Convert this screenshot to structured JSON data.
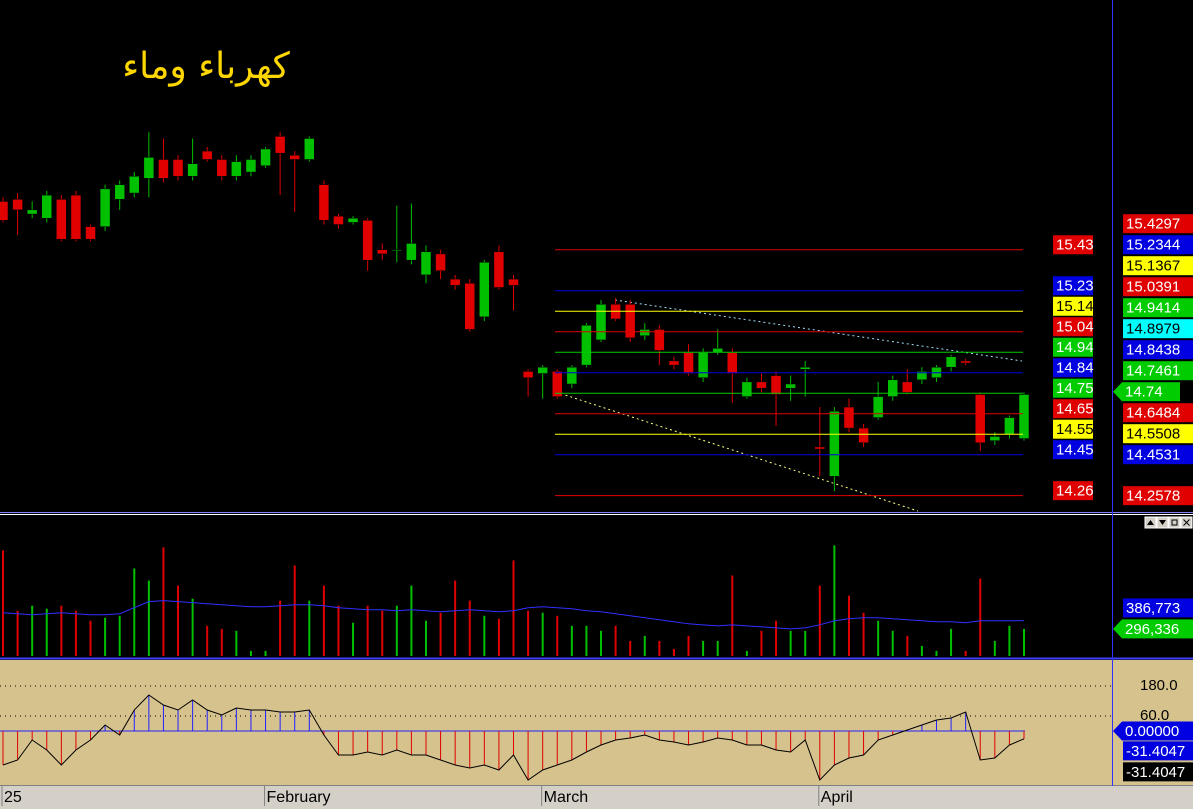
{
  "chart_data": [
    {
      "type": "candlestick",
      "title": "كهرباء وماء",
      "categories": [
        "25",
        null,
        null,
        null,
        null,
        null,
        null,
        null,
        null,
        null,
        null,
        null,
        null,
        null,
        null,
        null,
        null,
        null,
        "February",
        null,
        null,
        null,
        null,
        null,
        null,
        null,
        null,
        null,
        null,
        null,
        null,
        null,
        null,
        null,
        null,
        null,
        null,
        "March",
        null,
        null,
        null,
        null,
        null,
        null,
        null,
        null,
        null,
        null,
        null,
        null,
        null,
        null,
        null,
        null,
        null,
        null,
        "April",
        null,
        null,
        null,
        null,
        null,
        null,
        null,
        null,
        null,
        null,
        null,
        null,
        null,
        null
      ],
      "open": [
        15.66,
        15.67,
        15.6,
        15.58,
        15.67,
        15.69,
        15.54,
        15.54,
        15.67,
        15.7,
        15.77,
        15.86,
        15.86,
        15.78,
        15.9,
        15.86,
        15.78,
        15.8,
        15.83,
        15.97,
        15.88,
        15.86,
        15.74,
        15.59,
        15.56,
        15.57,
        15.43,
        15.43,
        15.38,
        15.31,
        15.41,
        15.29,
        15.27,
        15.11,
        15.42,
        15.29,
        14.85,
        14.84,
        14.85,
        14.79,
        14.88,
        15.0,
        15.17,
        15.17,
        15.02,
        15.05,
        14.9,
        14.94,
        14.82,
        14.94,
        14.94,
        14.73,
        14.8,
        14.83,
        14.77,
        14.86,
        14.49,
        14.35,
        14.68,
        14.58,
        14.63,
        14.73,
        14.8,
        14.81,
        14.82,
        14.87,
        14.9,
        14.74,
        14.52,
        14.55,
        14.53
      ],
      "high": [
        15.68,
        15.7,
        15.66,
        15.71,
        15.69,
        15.71,
        15.55,
        15.74,
        15.76,
        15.8,
        15.99,
        15.96,
        15.88,
        15.96,
        15.92,
        15.88,
        15.88,
        15.88,
        15.92,
        15.99,
        15.9,
        15.97,
        15.76,
        15.6,
        15.59,
        15.58,
        15.46,
        15.64,
        15.65,
        15.45,
        15.43,
        15.31,
        15.29,
        15.38,
        15.45,
        15.31,
        14.86,
        14.88,
        14.86,
        14.88,
        15.08,
        15.19,
        15.2,
        15.19,
        15.08,
        15.07,
        14.92,
        14.98,
        14.96,
        15.05,
        14.96,
        14.82,
        14.84,
        14.85,
        14.83,
        14.9,
        14.68,
        14.68,
        14.72,
        14.6,
        14.8,
        14.83,
        14.86,
        14.87,
        14.88,
        14.93,
        14.91,
        14.75,
        14.56,
        14.64,
        14.75
      ],
      "low": [
        15.56,
        15.5,
        15.58,
        15.56,
        15.47,
        15.47,
        15.47,
        15.52,
        15.62,
        15.68,
        15.68,
        15.75,
        15.76,
        15.76,
        15.85,
        15.76,
        15.76,
        15.78,
        15.82,
        15.69,
        15.61,
        15.85,
        15.55,
        15.53,
        15.55,
        15.33,
        15.38,
        15.37,
        15.36,
        15.27,
        15.29,
        15.24,
        15.04,
        15.09,
        15.24,
        15.14,
        14.73,
        14.72,
        14.72,
        14.77,
        14.87,
        14.99,
        15.09,
        14.99,
        15.0,
        14.88,
        14.86,
        14.83,
        14.8,
        14.93,
        14.7,
        14.72,
        14.75,
        14.59,
        14.71,
        14.73,
        14.35,
        14.28,
        14.56,
        14.49,
        14.62,
        14.71,
        14.74,
        14.79,
        14.8,
        14.85,
        14.88,
        14.47,
        14.5,
        14.53,
        14.52
      ],
      "close": [
        15.57,
        15.62,
        15.62,
        15.69,
        15.48,
        15.48,
        15.48,
        15.72,
        15.74,
        15.78,
        15.87,
        15.77,
        15.78,
        15.84,
        15.86,
        15.78,
        15.85,
        15.86,
        15.91,
        15.89,
        15.86,
        15.96,
        15.57,
        15.55,
        15.58,
        15.38,
        15.41,
        15.43,
        15.46,
        15.42,
        15.33,
        15.26,
        15.05,
        15.37,
        15.25,
        15.26,
        14.82,
        14.87,
        14.73,
        14.87,
        15.07,
        15.17,
        15.1,
        15.01,
        15.05,
        14.95,
        14.88,
        14.84,
        14.94,
        14.96,
        14.84,
        14.8,
        14.77,
        14.74,
        14.79,
        14.87,
        14.48,
        14.66,
        14.58,
        14.51,
        14.73,
        14.81,
        14.75,
        14.85,
        14.87,
        14.92,
        14.89,
        14.51,
        14.54,
        14.63,
        14.74
      ],
      "up_color": "#00c000",
      "down_color": "#e00000",
      "ylim": [
        14.18,
        16.62
      ],
      "levels": [
        {
          "value": 15.4297,
          "label": "15.43",
          "color": "#e00000"
        },
        {
          "value": 15.2344,
          "label": "15.23",
          "color": "#0000e0"
        },
        {
          "value": 15.1367,
          "label": "15.14",
          "color": "#ffff00"
        },
        {
          "value": 15.0391,
          "label": "15.04",
          "color": "#e00000"
        },
        {
          "value": 14.9414,
          "label": "14.94",
          "color": "#00cc00"
        },
        {
          "value": 14.8438,
          "label": "14.84",
          "color": "#0000e0"
        },
        {
          "value": 14.7461,
          "label": "14.75",
          "color": "#00cc00"
        },
        {
          "value": 14.6484,
          "label": "14.65",
          "color": "#e00000"
        },
        {
          "value": 14.5508,
          "label": "14.55",
          "color": "#ffff00"
        },
        {
          "value": 14.4531,
          "label": "14.45",
          "color": "#0000e0"
        },
        {
          "value": 14.2578,
          "label": "14.26",
          "color": "#e00000"
        }
      ],
      "markers": [
        {
          "value": 14.8979,
          "color": "#00ffff"
        }
      ],
      "last_price": 14.74,
      "last_color": "#00cc00"
    },
    {
      "type": "bar",
      "values": [
        1155000,
        495000,
        550000,
        517000,
        550000,
        495000,
        385000,
        418000,
        440000,
        957000,
        825000,
        1188000,
        770000,
        627000,
        330000,
        297000,
        275000,
        55000,
        55000,
        605000,
        990000,
        605000,
        770000,
        550000,
        363000,
        550000,
        495000,
        550000,
        770000,
        385000,
        473000,
        825000,
        605000,
        440000,
        407000,
        1045000,
        495000,
        473000,
        440000,
        330000,
        330000,
        275000,
        330000,
        165000,
        220000,
        165000,
        77000,
        220000,
        165000,
        165000,
        880000,
        55000,
        275000,
        385000,
        275000,
        275000,
        770000,
        1210000,
        660000,
        473000,
        385000,
        275000,
        220000,
        110000,
        55000,
        297000,
        55000,
        847000,
        165000,
        330000,
        296336
      ],
      "last_label": "296,336",
      "ma": {
        "values": [
          473000,
          462000,
          451000,
          462000,
          473000,
          462000,
          451000,
          451000,
          462000,
          528000,
          594000,
          605000,
          594000,
          583000,
          572000,
          561000,
          550000,
          539000,
          539000,
          550000,
          561000,
          561000,
          550000,
          528000,
          517000,
          506000,
          506000,
          495000,
          506000,
          495000,
          484000,
          495000,
          506000,
          495000,
          484000,
          495000,
          528000,
          539000,
          528000,
          517000,
          495000,
          484000,
          462000,
          440000,
          418000,
          396000,
          374000,
          352000,
          341000,
          330000,
          341000,
          330000,
          319000,
          308000,
          297000,
          308000,
          341000,
          385000,
          407000,
          418000,
          418000,
          407000,
          396000,
          385000,
          374000,
          374000,
          363000,
          385000,
          385000,
          385000,
          386773
        ],
        "last_label": "386,773",
        "color": "#3030ff"
      },
      "ylim": [
        0,
        1520000
      ]
    },
    {
      "type": "stem",
      "values": [
        -136,
        -116,
        -36,
        -76,
        -136,
        -76,
        -36,
        24,
        -16,
        84,
        144,
        104,
        84,
        124,
        84,
        64,
        92,
        84,
        84,
        76,
        76,
        84,
        -16,
        -96,
        -96,
        -84,
        -96,
        -76,
        -96,
        -96,
        -116,
        -136,
        -148,
        -136,
        -156,
        -96,
        -196,
        -156,
        -136,
        -116,
        -84,
        -56,
        -36,
        -28,
        -16,
        -36,
        -44,
        -56,
        -44,
        -28,
        -36,
        -56,
        -56,
        -76,
        -84,
        -36,
        -196,
        -136,
        -108,
        -96,
        -36,
        -16,
        4,
        24,
        44,
        52,
        76,
        -116,
        -108,
        -56,
        -31.4047
      ],
      "ylim": [
        -216,
        280
      ],
      "yticks": [
        {
          "value": 180,
          "label": "180.0"
        },
        {
          "value": 60,
          "label": "60.0"
        },
        {
          "value": 0,
          "label": "0.00000"
        }
      ],
      "up_color": "#2020ff",
      "down_color": "#e00000",
      "line_color": "#000000"
    }
  ]
}
